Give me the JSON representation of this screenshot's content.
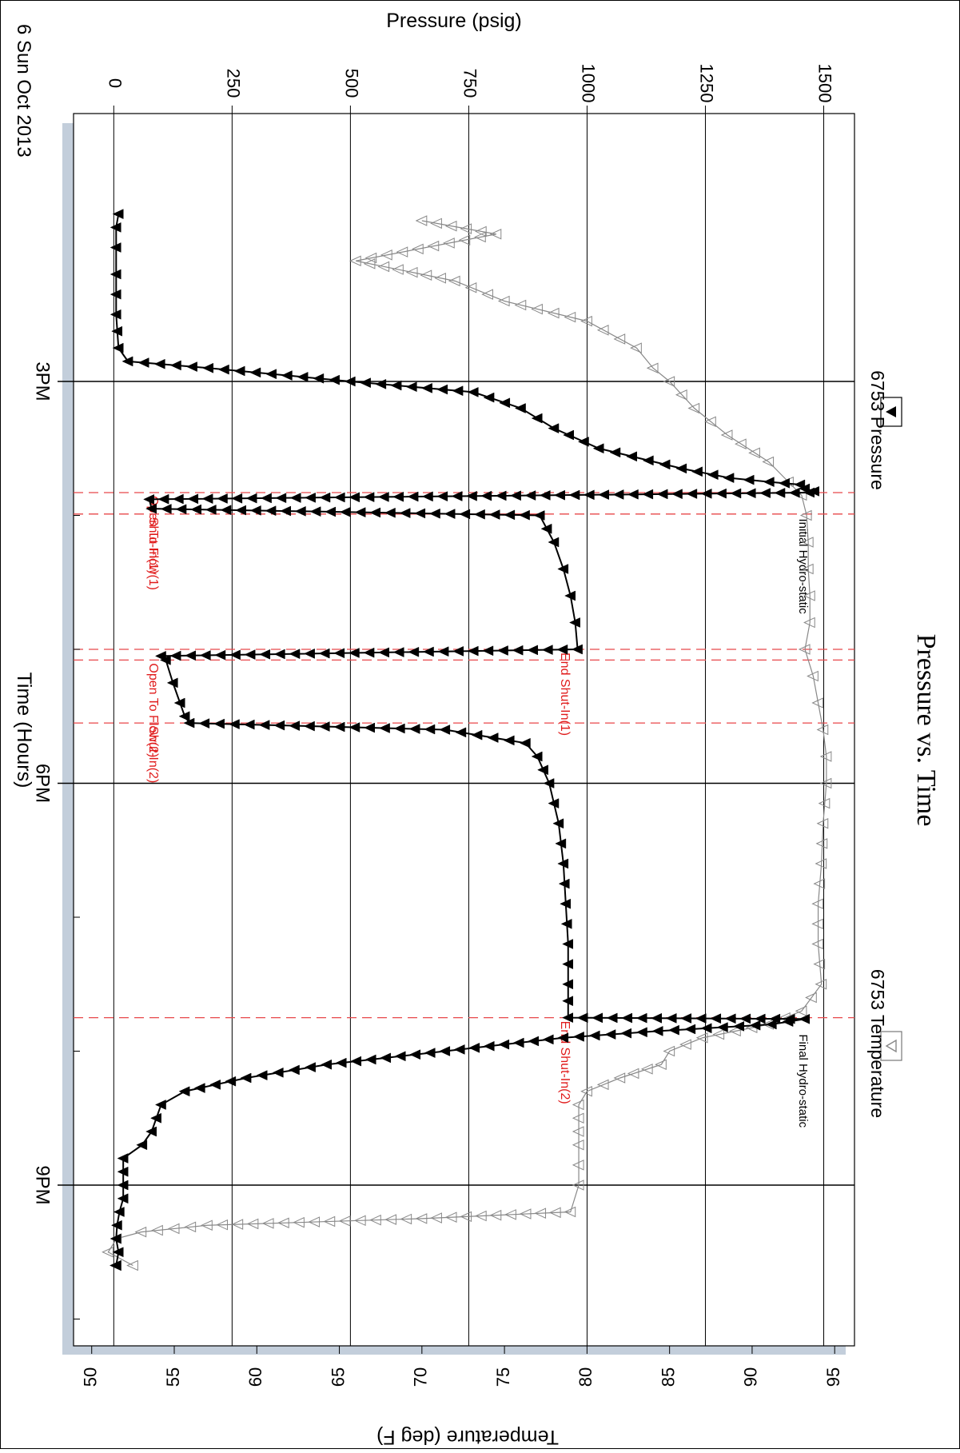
{
  "chart_data": {
    "type": "line",
    "title": "Pressure vs. Time",
    "date_label": "6 Sun Oct 2013",
    "x_axis": {
      "label": "Time (Hours)",
      "ticks": [
        "3PM",
        "6PM",
        "9PM"
      ],
      "tick_hours": [
        15,
        18,
        21
      ],
      "minor_tick_hours": [
        16,
        17,
        19,
        20,
        22
      ],
      "range_hours": [
        13.0,
        22.2
      ]
    },
    "y_left": {
      "label": "Pressure (psig)",
      "ticks": [
        "0",
        "250",
        "500",
        "750",
        "1000",
        "1250",
        "1500"
      ],
      "tick_values": [
        0,
        250,
        500,
        750,
        1000,
        1250,
        1500
      ],
      "range": [
        -85,
        1565
      ]
    },
    "y_right": {
      "label": "Temperature (deg F)",
      "ticks": [
        "50",
        "55",
        "60",
        "65",
        "70",
        "75",
        "80",
        "85",
        "90",
        "95"
      ],
      "tick_values": [
        50,
        55,
        60,
        65,
        70,
        75,
        80,
        85,
        90,
        95
      ],
      "range": [
        48.9,
        96.2
      ]
    },
    "grid": true,
    "legend": {
      "pressure": {
        "label": "6753 Pressure",
        "marker": "filled-triangle"
      },
      "temperature": {
        "label": "6753 Temperature",
        "marker": "open-triangle"
      }
    },
    "series": [
      {
        "name": "6753 Pressure",
        "axis": "left",
        "color": "#000000",
        "marker": "filled-triangle",
        "x": [
          13.75,
          13.85,
          14.0,
          14.2,
          14.5,
          14.75,
          14.85,
          14.9,
          15.0,
          15.08,
          15.2,
          15.35,
          15.5,
          15.65,
          15.72,
          15.75,
          15.77,
          15.8,
          15.82,
          15.83,
          15.88,
          15.95,
          16.0,
          16.2,
          16.4,
          16.6,
          16.8,
          17.0,
          17.05,
          17.08,
          17.25,
          17.4,
          17.5,
          17.55,
          17.6,
          17.7,
          17.8,
          18.0,
          18.3,
          18.6,
          18.9,
          19.2,
          19.5,
          19.75,
          19.76,
          19.8,
          19.85,
          19.9,
          20.0,
          20.1,
          20.2,
          20.3,
          20.4,
          20.5,
          20.6,
          20.7,
          20.8,
          20.9,
          21.0,
          21.1,
          21.2,
          21.3,
          21.4,
          21.5,
          21.6
        ],
        "y": [
          10,
          5,
          5,
          5,
          5,
          10,
          30,
          200,
          500,
          760,
          860,
          930,
          1025,
          1200,
          1300,
          1385,
          1450,
          1460,
          1480,
          1470,
          75,
          80,
          900,
          930,
          950,
          965,
          975,
          980,
          100,
          110,
          125,
          140,
          150,
          160,
          700,
          870,
          895,
          920,
          940,
          950,
          955,
          960,
          960,
          960,
          1460,
          1390,
          1150,
          950,
          700,
          450,
          280,
          150,
          100,
          90,
          80,
          60,
          20,
          20,
          20,
          20,
          12,
          7,
          5,
          10,
          5
        ]
      },
      {
        "name": "6753 Temperature",
        "axis": "right",
        "color": "#888888",
        "marker": "open-triangle",
        "x": [
          13.8,
          13.9,
          14.1,
          14.25,
          14.4,
          14.55,
          14.75,
          14.9,
          15.0,
          15.2,
          15.4,
          15.6,
          15.75,
          15.85,
          16.0,
          16.2,
          16.4,
          16.6,
          16.8,
          17.0,
          17.2,
          17.4,
          17.6,
          17.8,
          18.0,
          18.3,
          18.6,
          18.9,
          19.2,
          19.5,
          19.7,
          19.8,
          19.85,
          19.9,
          20.0,
          20.1,
          20.2,
          20.3,
          20.4,
          20.5,
          20.6,
          20.7,
          20.85,
          21.0,
          21.2,
          21.25,
          21.3,
          21.35,
          21.4,
          21.5,
          21.6
        ],
        "y": [
          70.0,
          74.5,
          66.0,
          72.0,
          75.0,
          80.0,
          83.0,
          84.0,
          85.0,
          86.5,
          88.5,
          91.0,
          92.2,
          93.0,
          93.3,
          93.4,
          93.4,
          93.5,
          93.5,
          93.2,
          93.7,
          94.0,
          94.3,
          94.5,
          94.5,
          94.3,
          94.2,
          94.0,
          94.0,
          94.2,
          93.0,
          91.0,
          89.0,
          87.0,
          85.0,
          84.5,
          82.0,
          80.0,
          79.5,
          79.5,
          79.5,
          79.5,
          79.5,
          79.5,
          79.0,
          70.0,
          57.0,
          53.0,
          51.5,
          51.0,
          52.5
        ]
      }
    ],
    "event_lines": [
      {
        "label": "Open To Flow(1)",
        "x": 15.83
      },
      {
        "label": "Shut-In(1)",
        "x": 15.99
      },
      {
        "label": "End Shut-In(1)",
        "x": 17.0
      },
      {
        "label": "Open To Flow(2)",
        "x": 17.08
      },
      {
        "label": "Shut-In(2)",
        "x": 17.55
      },
      {
        "label": "End Shut-In(2)",
        "x": 19.75
      }
    ],
    "event_annotations": [
      {
        "label": "Initial Hydro-static",
        "x": 16.0
      },
      {
        "label": "Final Hydro-static",
        "x": 19.85
      }
    ]
  }
}
